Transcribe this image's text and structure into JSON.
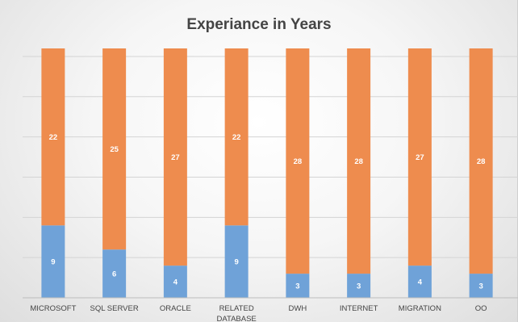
{
  "chart_data": {
    "type": "bar",
    "stacked": true,
    "title": "Experiance in Years",
    "categories": [
      "MICROSOFT",
      "SQL SERVER",
      "ORACLE",
      "RELATED DATABASE",
      "DWH",
      "INTERNET",
      "MIGRATION",
      "OO"
    ],
    "category_lines": [
      [
        "MICROSOFT"
      ],
      [
        "SQL SERVER"
      ],
      [
        "ORACLE"
      ],
      [
        "RELATED",
        "DATABASE"
      ],
      [
        "DWH"
      ],
      [
        "INTERNET"
      ],
      [
        "MIGRATION"
      ],
      [
        "OO"
      ]
    ],
    "series": [
      {
        "values": [
          9,
          6,
          4,
          9,
          3,
          3,
          4,
          3
        ],
        "color": "#6fa2d8"
      },
      {
        "values": [
          22,
          25,
          27,
          22,
          28,
          28,
          27,
          28
        ],
        "color": "#ee8c4e"
      }
    ],
    "ylim": [
      0,
      31
    ],
    "grid": true,
    "legend": "none",
    "data_labels": true
  }
}
